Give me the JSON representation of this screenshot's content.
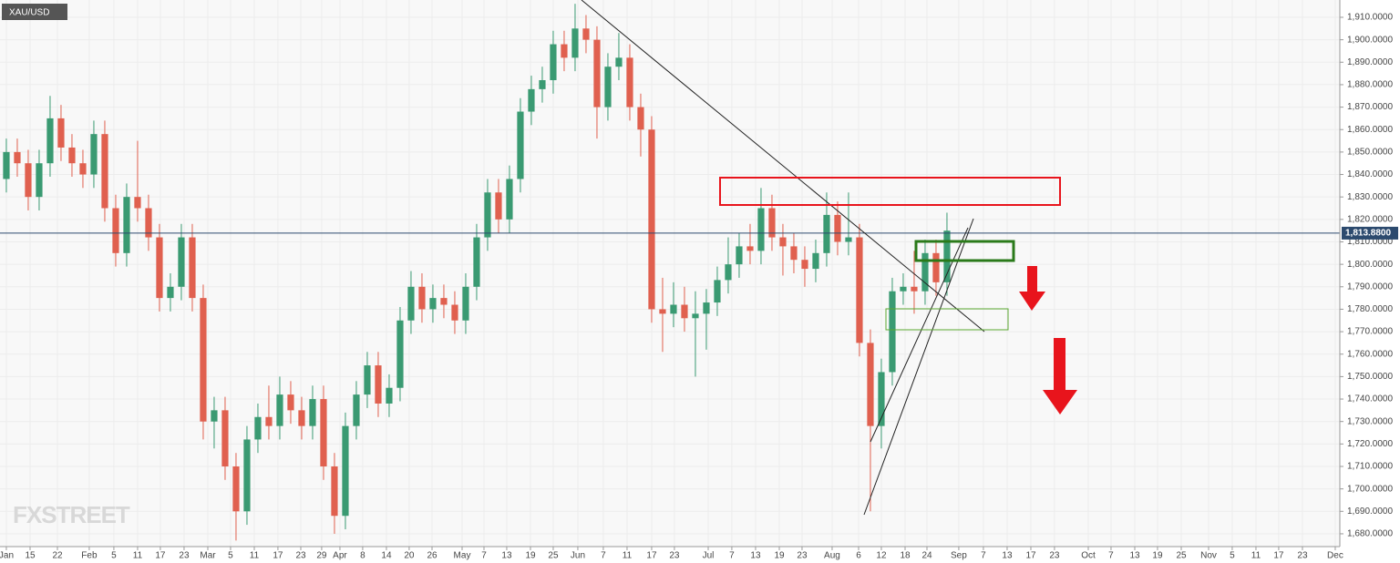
{
  "chart_data": {
    "type": "candlestick",
    "title": "XAU/USD",
    "watermark": "FXSTREET",
    "open": [
      1838,
      1850,
      1845,
      1830,
      1845,
      1865,
      1852,
      1845,
      1840,
      1858,
      1825,
      1805,
      1830,
      1825,
      1812,
      1785,
      1790,
      1812,
      1785,
      1730,
      1735,
      1710,
      1690,
      1722,
      1732,
      1728,
      1742,
      1735,
      1728,
      1740,
      1710,
      1688,
      1728,
      1742,
      1755,
      1738,
      1745,
      1775,
      1790,
      1780,
      1785,
      1782,
      1775,
      1790,
      1812,
      1832,
      1820,
      1838,
      1868,
      1878,
      1882,
      1898,
      1892,
      1905,
      1900,
      1870,
      1888,
      1892,
      1870,
      1860,
      1780,
      1778,
      1782,
      1776,
      1778,
      1783,
      1793,
      1800,
      1808,
      1806,
      1825,
      1812,
      1808,
      1802,
      1798,
      1805,
      1822,
      1810,
      1812,
      1765,
      1728,
      1752,
      1788,
      1790,
      1788,
      1805,
      1792
    ],
    "high": [
      1856,
      1856,
      1851,
      1851,
      1875,
      1871,
      1858,
      1851,
      1864,
      1864,
      1831,
      1836,
      1855,
      1831,
      1818,
      1796,
      1818,
      1818,
      1791,
      1741,
      1741,
      1716,
      1728,
      1738,
      1746,
      1750,
      1748,
      1741,
      1746,
      1746,
      1716,
      1734,
      1748,
      1761,
      1761,
      1751,
      1781,
      1797,
      1796,
      1791,
      1791,
      1788,
      1796,
      1818,
      1838,
      1838,
      1844,
      1874,
      1884,
      1888,
      1904,
      1904,
      1916,
      1911,
      1906,
      1894,
      1903,
      1898,
      1876,
      1866,
      1794,
      1792,
      1790,
      1788,
      1789,
      1799,
      1812,
      1814,
      1818,
      1834,
      1831,
      1818,
      1814,
      1808,
      1811,
      1832,
      1828,
      1832,
      1818,
      1771,
      1758,
      1794,
      1796,
      1806,
      1811,
      1811,
      1823
    ],
    "low": [
      1832,
      1839,
      1824,
      1824,
      1839,
      1846,
      1839,
      1834,
      1834,
      1819,
      1799,
      1799,
      1819,
      1806,
      1779,
      1779,
      1784,
      1779,
      1722,
      1718,
      1704,
      1677,
      1684,
      1716,
      1722,
      1722,
      1729,
      1722,
      1722,
      1704,
      1680,
      1682,
      1722,
      1736,
      1732,
      1732,
      1739,
      1769,
      1774,
      1774,
      1776,
      1769,
      1769,
      1784,
      1806,
      1814,
      1814,
      1832,
      1862,
      1872,
      1876,
      1886,
      1886,
      1894,
      1856,
      1864,
      1882,
      1864,
      1848,
      1774,
      1761,
      1772,
      1770,
      1750,
      1762,
      1777,
      1787,
      1794,
      1800,
      1800,
      1806,
      1795,
      1796,
      1790,
      1792,
      1799,
      1804,
      1804,
      1759,
      1690,
      1718,
      1746,
      1782,
      1778,
      1782,
      1786,
      1786
    ],
    "close": [
      1850,
      1845,
      1830,
      1845,
      1865,
      1852,
      1845,
      1840,
      1858,
      1825,
      1805,
      1830,
      1825,
      1812,
      1785,
      1790,
      1812,
      1785,
      1730,
      1735,
      1710,
      1690,
      1722,
      1732,
      1728,
      1742,
      1735,
      1728,
      1740,
      1710,
      1688,
      1728,
      1742,
      1755,
      1738,
      1745,
      1775,
      1790,
      1780,
      1785,
      1782,
      1775,
      1790,
      1812,
      1832,
      1820,
      1838,
      1868,
      1878,
      1882,
      1898,
      1892,
      1905,
      1900,
      1870,
      1888,
      1892,
      1870,
      1860,
      1780,
      1778,
      1782,
      1776,
      1778,
      1783,
      1793,
      1800,
      1808,
      1806,
      1825,
      1812,
      1808,
      1802,
      1798,
      1805,
      1822,
      1810,
      1812,
      1765,
      1728,
      1752,
      1788,
      1790,
      1788,
      1805,
      1792,
      1815
    ],
    "up_color": "#3a9a72",
    "down_color": "#e0604f",
    "last_price": {
      "value": 1813.88,
      "label": "1,813.8800"
    },
    "xlim": [
      -0.58,
      121.92
    ],
    "ylim": [
      1674.3,
      1917.7
    ],
    "grid": true,
    "yticks": [
      {
        "value": 1680,
        "label": "1,680.0000"
      },
      {
        "value": 1690,
        "label": "1,690.0000"
      },
      {
        "value": 1700,
        "label": "1,700.0000"
      },
      {
        "value": 1710,
        "label": "1,710.0000"
      },
      {
        "value": 1720,
        "label": "1,720.0000"
      },
      {
        "value": 1730,
        "label": "1,730.0000"
      },
      {
        "value": 1740,
        "label": "1,740.0000"
      },
      {
        "value": 1750,
        "label": "1,750.0000"
      },
      {
        "value": 1760,
        "label": "1,760.0000"
      },
      {
        "value": 1770,
        "label": "1,770.0000"
      },
      {
        "value": 1780,
        "label": "1,780.0000"
      },
      {
        "value": 1790,
        "label": "1,790.0000"
      },
      {
        "value": 1800,
        "label": "1,800.0000"
      },
      {
        "value": 1810,
        "label": "1,810.0000"
      },
      {
        "value": 1820,
        "label": "1,820.0000"
      },
      {
        "value": 1830,
        "label": "1,830.0000"
      },
      {
        "value": 1840,
        "label": "1,840.0000"
      },
      {
        "value": 1850,
        "label": "1,850.0000"
      },
      {
        "value": 1860,
        "label": "1,860.0000"
      },
      {
        "value": 1870,
        "label": "1,870.0000"
      },
      {
        "value": 1880,
        "label": "1,880.0000"
      },
      {
        "value": 1890,
        "label": "1,890.0000"
      },
      {
        "value": 1900,
        "label": "1,900.0000"
      },
      {
        "value": 1910,
        "label": "1,910.0000"
      }
    ],
    "xticks": [
      {
        "value": 0,
        "label": "Jan"
      },
      {
        "value": 2.17,
        "label": "15"
      },
      {
        "value": 4.67,
        "label": "22"
      },
      {
        "value": 7.58,
        "label": "Feb"
      },
      {
        "value": 9.83,
        "label": "5"
      },
      {
        "value": 12,
        "label": "11"
      },
      {
        "value": 14.08,
        "label": "17"
      },
      {
        "value": 16.25,
        "label": "23"
      },
      {
        "value": 18.42,
        "label": "Mar"
      },
      {
        "value": 20.5,
        "label": "5"
      },
      {
        "value": 22.67,
        "label": "11"
      },
      {
        "value": 24.83,
        "label": "17"
      },
      {
        "value": 26.92,
        "label": "23"
      },
      {
        "value": 28.83,
        "label": "29"
      },
      {
        "value": 30.5,
        "label": "Apr"
      },
      {
        "value": 32.58,
        "label": "8"
      },
      {
        "value": 34.75,
        "label": "14"
      },
      {
        "value": 36.83,
        "label": "20"
      },
      {
        "value": 38.92,
        "label": "26"
      },
      {
        "value": 41.67,
        "label": "May"
      },
      {
        "value": 43.67,
        "label": "7"
      },
      {
        "value": 45.75,
        "label": "13"
      },
      {
        "value": 47.92,
        "label": "19"
      },
      {
        "value": 50,
        "label": "25"
      },
      {
        "value": 52.25,
        "label": "Jun"
      },
      {
        "value": 54.58,
        "label": "7"
      },
      {
        "value": 56.75,
        "label": "11"
      },
      {
        "value": 59,
        "label": "17"
      },
      {
        "value": 61.08,
        "label": "23"
      },
      {
        "value": 64.17,
        "label": "Jul"
      },
      {
        "value": 66.33,
        "label": "7"
      },
      {
        "value": 68.5,
        "label": "13"
      },
      {
        "value": 70.67,
        "label": "19"
      },
      {
        "value": 72.75,
        "label": "23"
      },
      {
        "value": 75.5,
        "label": "Aug"
      },
      {
        "value": 77.92,
        "label": "6"
      },
      {
        "value": 80,
        "label": "12"
      },
      {
        "value": 82.17,
        "label": "18"
      },
      {
        "value": 84.17,
        "label": "24"
      },
      {
        "value": 87.08,
        "label": "Sep"
      },
      {
        "value": 89.33,
        "label": "7"
      },
      {
        "value": 91.5,
        "label": "13"
      },
      {
        "value": 93.67,
        "label": "17"
      },
      {
        "value": 95.83,
        "label": "23"
      },
      {
        "value": 98.92,
        "label": "Oct"
      },
      {
        "value": 101,
        "label": "7"
      },
      {
        "value": 103.17,
        "label": "13"
      },
      {
        "value": 105.25,
        "label": "19"
      },
      {
        "value": 107.42,
        "label": "25"
      },
      {
        "value": 109.92,
        "label": "Nov"
      },
      {
        "value": 112.08,
        "label": "5"
      },
      {
        "value": 114.25,
        "label": "11"
      },
      {
        "value": 116.33,
        "label": "17"
      },
      {
        "value": 118.5,
        "label": "23"
      },
      {
        "value": 121.5,
        "label": "Dec"
      }
    ]
  }
}
